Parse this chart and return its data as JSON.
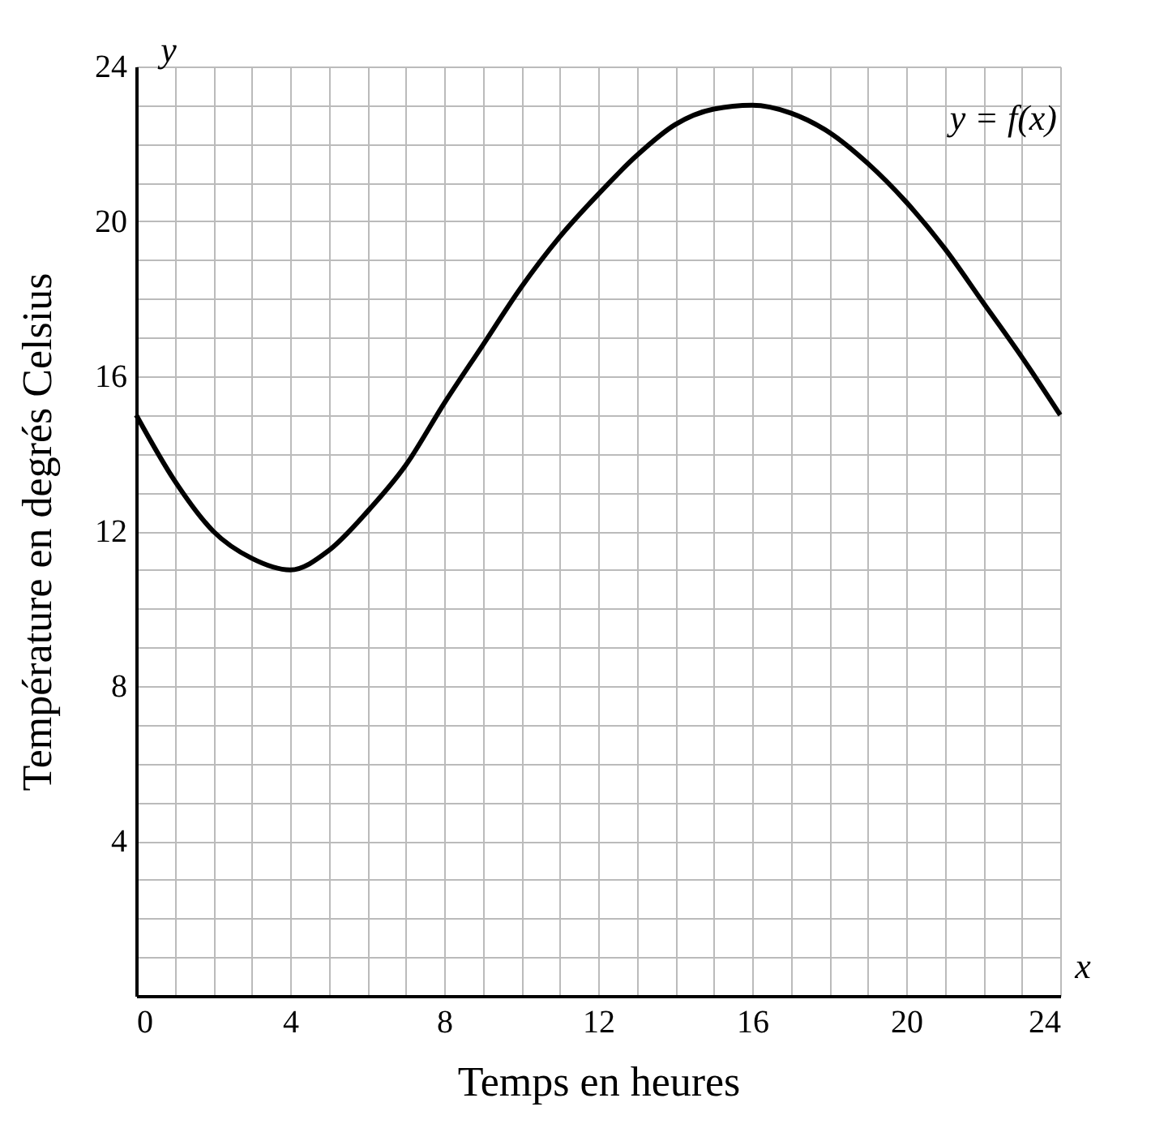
{
  "chart_data": {
    "type": "line",
    "xlabel": "Temps en heures",
    "ylabel": "Température en degrés Celsius",
    "annotations": [
      "x",
      "y"
    ],
    "x": [
      0,
      1,
      2,
      3,
      4,
      5,
      6,
      7,
      8,
      9,
      10,
      11,
      12,
      13,
      14,
      15,
      16,
      17,
      18,
      19,
      20,
      21,
      22,
      23,
      24
    ],
    "series": [
      {
        "name": "y = f(x)",
        "color": "#000000",
        "values": [
          15,
          13.3,
          12,
          11.3,
          11,
          11.5,
          12.5,
          13.7,
          15.3,
          16.8,
          18.3,
          19.6,
          20.7,
          21.7,
          22.5,
          22.9,
          23,
          22.8,
          22.3,
          21.5,
          20.5,
          19.3,
          17.9,
          16.5,
          15
        ]
      }
    ],
    "xlim": [
      0,
      24
    ],
    "ylim": [
      0,
      24
    ],
    "xticks": [
      0,
      {
        "value": 1,
        "label": null
      },
      {
        "value": 2,
        "label": null
      },
      {
        "value": 3,
        "label": null
      },
      4,
      {
        "value": 5,
        "label": null
      },
      {
        "value": 6,
        "label": null
      },
      {
        "value": 7,
        "label": null
      },
      8,
      {
        "value": 9,
        "label": null
      },
      {
        "value": 10,
        "label": null
      },
      {
        "value": 11,
        "label": null
      },
      12,
      {
        "value": 13,
        "label": null
      },
      {
        "value": 14,
        "label": null
      },
      {
        "value": 15,
        "label": null
      },
      16,
      {
        "value": 17,
        "label": null
      },
      {
        "value": 18,
        "label": null
      },
      {
        "value": 19,
        "label": null
      },
      20,
      {
        "value": 21,
        "label": null
      },
      {
        "value": 22,
        "label": null
      },
      {
        "value": 23,
        "label": null
      },
      24
    ],
    "yticks": [
      {
        "value": 0,
        "label": null
      },
      {
        "value": 1,
        "label": null
      },
      {
        "value": 2,
        "label": null
      },
      {
        "value": 3,
        "label": null
      },
      4,
      {
        "value": 5,
        "label": null
      },
      {
        "value": 6,
        "label": null
      },
      {
        "value": 7,
        "label": null
      },
      8,
      {
        "value": 9,
        "label": null
      },
      {
        "value": 10,
        "label": null
      },
      {
        "value": 11,
        "label": null
      },
      12,
      {
        "value": 13,
        "label": null
      },
      {
        "value": 14,
        "label": null
      },
      {
        "value": 15,
        "label": null
      },
      16,
      {
        "value": 17,
        "label": null
      },
      {
        "value": 18,
        "label": null
      },
      {
        "value": 19,
        "label": null
      },
      20,
      {
        "value": 21,
        "label": null
      },
      {
        "value": 22,
        "label": null
      },
      {
        "value": 23,
        "label": null
      },
      24
    ],
    "grid": true,
    "line_style": "solid",
    "marker": "none"
  }
}
